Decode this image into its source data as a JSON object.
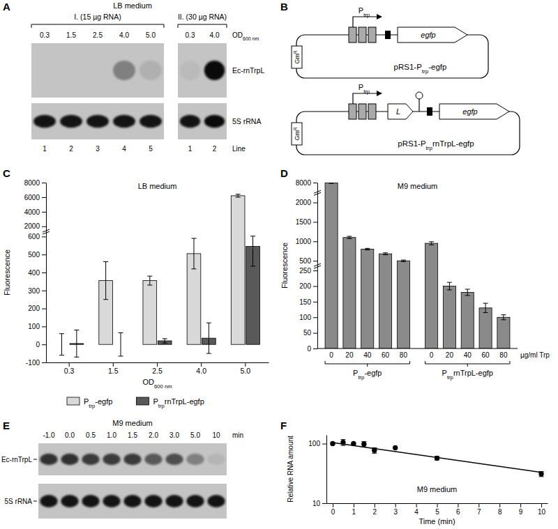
{
  "panel_labels": [
    "A",
    "B",
    "C",
    "D",
    "E",
    "F"
  ],
  "blots": [
    {
      "title": "LB medium",
      "x_label": "OD600 nm",
      "rows": [
        "Ec-rnTrpL",
        "5S rRNA"
      ],
      "line_label": "Line",
      "groups": [
        {
          "label": "I. (15 µg RNA)",
          "lanes": [
            "0.3",
            "1.5",
            "2.5",
            "4.0",
            "5.0"
          ],
          "lines": [
            1,
            2,
            3,
            4,
            5
          ],
          "bands": [
            [
              0,
              0,
              0,
              0.35,
              0.1
            ],
            [
              0.9,
              0.9,
              0.9,
              0.9,
              0.9
            ]
          ]
        },
        {
          "label": "II. (30 µg RNA)",
          "lanes": [
            "0.3",
            "4.0"
          ],
          "lines": [
            1,
            2
          ],
          "bands": [
            [
              0.05,
              0.95
            ],
            [
              0.9,
              0.95
            ]
          ]
        }
      ]
    },
    {
      "title": "M9 medium",
      "x_label": "min",
      "rows": [
        "Ec-rnTrpL",
        "5S rRNA"
      ],
      "groups": [
        {
          "lanes": [
            "-1.0",
            "0.0",
            "0.5",
            "1.0",
            "1.5",
            "2.0",
            "3.0",
            "5.0",
            "10"
          ],
          "bands": [
            [
              0.75,
              0.75,
              0.7,
              0.7,
              0.7,
              0.55,
              0.6,
              0.35,
              0.08
            ],
            [
              0.9,
              0.9,
              0.9,
              0.9,
              0.9,
              0.9,
              0.9,
              0.9,
              0.9
            ]
          ]
        }
      ]
    }
  ],
  "plasmids": [
    {
      "label": "pRS1-Ptrp-egfp",
      "promoter": "Ptrp",
      "gene": "egfp",
      "resistance": "GmR"
    },
    {
      "label": "pRS1-PtrprnTrpL-egfp",
      "promoter": "Ptrp",
      "leader": "L",
      "gene": "egfp",
      "resistance": "GmR"
    }
  ],
  "chart_data": [
    {
      "type": "bar",
      "title": "LB medium",
      "x_label": "OD600 nm",
      "y_label": "Fluorescence",
      "categories": [
        "0.3",
        "1.5",
        "2.5",
        "4.0",
        "5.0"
      ],
      "series": [
        {
          "name": "Ptrp-egfp",
          "color": "#d9d9d9",
          "values": [
            0,
            355,
            355,
            505,
            6200
          ],
          "errors": [
            60,
            105,
            25,
            85,
            200
          ]
        },
        {
          "name": "PtrprnTrpL-egfp",
          "color": "#595959",
          "values": [
            5,
            0,
            20,
            35,
            545
          ],
          "errors": [
            75,
            65,
            12,
            85,
            110
          ]
        }
      ],
      "ylim": [
        -100,
        8000
      ],
      "yticks": [
        -100,
        0,
        100,
        200,
        300,
        400,
        500,
        600,
        2000,
        4000,
        6000,
        8000
      ],
      "legend": "bottom"
    },
    {
      "type": "bar",
      "title": "M9 medium",
      "x_label": "µg/ml Trp",
      "y_label": "Fluorescence",
      "categories": [
        "0",
        "20",
        "40",
        "60",
        "80"
      ],
      "series": [
        {
          "name": "Ptrp-egfp",
          "color": "#8a8a8a",
          "values": [
            7900,
            1100,
            800,
            680,
            500
          ],
          "errors": [
            150,
            30,
            20,
            25,
            20
          ]
        },
        {
          "name": "PtrprnTrpL-egfp",
          "color": "#8a8a8a",
          "values": [
            950,
            200,
            180,
            130,
            100
          ],
          "errors": [
            40,
            12,
            10,
            15,
            8
          ]
        }
      ],
      "ylim": [
        0,
        8000
      ],
      "yticks": [
        0,
        50,
        100,
        150,
        200,
        250,
        500,
        1000,
        1500,
        2000,
        8000
      ]
    },
    {
      "type": "scatter",
      "title": "M9 medium",
      "x_label": "Time (min)",
      "y_label": "Relative RNA amount",
      "log": "y",
      "xlim": [
        -0.3,
        10.3
      ],
      "xticks": [
        0,
        1,
        2,
        3,
        4,
        5,
        6,
        7,
        8,
        9,
        10
      ],
      "ylim": [
        10,
        140
      ],
      "yticks": [
        10,
        100
      ],
      "series": [
        {
          "type": "scatter",
          "marker": "circle",
          "color": "#000000",
          "x": [
            0,
            0.5,
            1,
            1.5,
            2,
            3,
            5,
            10
          ],
          "values": [
            100,
            105,
            100,
            98,
            77,
            85,
            57,
            31
          ],
          "errors": [
            4,
            12,
            3,
            10,
            8,
            null,
            4,
            3
          ]
        },
        {
          "type": "line",
          "line_style": "solid",
          "color": "#000000",
          "x": [
            0,
            10
          ],
          "values": [
            104,
            33
          ]
        }
      ]
    }
  ]
}
